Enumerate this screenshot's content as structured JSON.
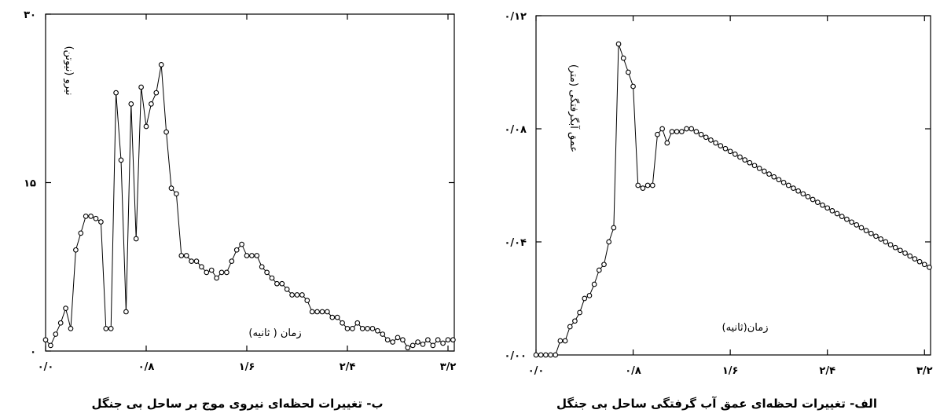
{
  "charts": [
    {
      "caption": "ب- تغییرات لحظه‌ای نیروی موج بر ساحل بی جنگل",
      "chart_data": {
        "type": "scatter",
        "style": "line-with-markers",
        "xlabel": "زمان ( ثانیه)",
        "ylabel": "نیرو (نیوتن)",
        "xlim": [
          0,
          3.25
        ],
        "ylim": [
          0,
          30
        ],
        "xticks": [
          0,
          0.8,
          1.6,
          2.4,
          3.2
        ],
        "xtick_labels": [
          "۰/۰",
          "۰/۸",
          "۱/۶",
          "۲/۴",
          "۳/۲"
        ],
        "yticks": [
          0,
          15,
          30
        ],
        "ytick_labels": [
          "۰",
          "۱۵",
          "۳۰"
        ],
        "series": [
          {
            "x": [
              0.0,
              0.04,
              0.08,
              0.12,
              0.16,
              0.2,
              0.24,
              0.28,
              0.32,
              0.36,
              0.4,
              0.44,
              0.48,
              0.52,
              0.56,
              0.6,
              0.64,
              0.68,
              0.72,
              0.76,
              0.8,
              0.84,
              0.88,
              0.92,
              0.96,
              1.0,
              1.04,
              1.08,
              1.12,
              1.16,
              1.2,
              1.24,
              1.28,
              1.32,
              1.36,
              1.4,
              1.44,
              1.48,
              1.52,
              1.56,
              1.6,
              1.64,
              1.68,
              1.72,
              1.76,
              1.8,
              1.84,
              1.88,
              1.92,
              1.96,
              2.0,
              2.04,
              2.08,
              2.12,
              2.16,
              2.2,
              2.24,
              2.28,
              2.32,
              2.36,
              2.4,
              2.44,
              2.48,
              2.52,
              2.56,
              2.6,
              2.64,
              2.68,
              2.72,
              2.76,
              2.8,
              2.84,
              2.88,
              2.92,
              2.96,
              3.0,
              3.04,
              3.08,
              3.12,
              3.16,
              3.2,
              3.24
            ],
            "y": [
              1.0,
              0.5,
              1.5,
              2.5,
              3.8,
              2.0,
              9.0,
              10.5,
              12.0,
              12.0,
              11.8,
              11.5,
              2.0,
              2.0,
              23.0,
              17.0,
              3.5,
              22.0,
              10.0,
              23.5,
              20.0,
              22.0,
              23.0,
              25.5,
              19.5,
              14.5,
              14.0,
              8.5,
              8.5,
              8.0,
              8.0,
              7.5,
              7.0,
              7.2,
              6.5,
              7.0,
              7.0,
              8.0,
              9.0,
              9.5,
              8.5,
              8.5,
              8.5,
              7.5,
              7.0,
              6.5,
              6.0,
              6.0,
              5.5,
              5.0,
              5.0,
              5.0,
              4.5,
              3.5,
              3.5,
              3.5,
              3.5,
              3.0,
              3.0,
              2.5,
              2.0,
              2.0,
              2.5,
              2.0,
              2.0,
              2.0,
              1.8,
              1.5,
              1.0,
              0.8,
              1.2,
              1.0,
              0.3,
              0.5,
              0.8,
              0.6,
              1.0,
              0.5,
              1.0,
              0.7,
              1.0,
              1.0
            ]
          }
        ]
      }
    },
    {
      "caption": "الف- تغییرات لحظه‌ای عمق آب گرفتگی ساحل بی جنگل",
      "chart_data": {
        "type": "scatter",
        "style": "line-with-markers",
        "xlabel": "زمان(ثانیه)",
        "ylabel": "عمق آبگرفتگی (متر)",
        "xlim": [
          0,
          3.25
        ],
        "ylim": [
          0,
          0.12
        ],
        "xticks": [
          0,
          0.8,
          1.6,
          2.4,
          3.2
        ],
        "xtick_labels": [
          "۰/۰",
          "۰/۸",
          "۱/۶",
          "۲/۴",
          "۳/۲"
        ],
        "yticks": [
          0,
          0.04,
          0.08,
          0.12
        ],
        "ytick_labels": [
          "۰/۰۰",
          "۰/۰۴",
          "۰/۰۸",
          "۰/۱۲"
        ],
        "series": [
          {
            "x": [
              0.0,
              0.04,
              0.08,
              0.12,
              0.16,
              0.2,
              0.24,
              0.28,
              0.32,
              0.36,
              0.4,
              0.44,
              0.48,
              0.52,
              0.56,
              0.6,
              0.64,
              0.68,
              0.72,
              0.76,
              0.8,
              0.84,
              0.88,
              0.92,
              0.96,
              1.0,
              1.04,
              1.08,
              1.12,
              1.16,
              1.2,
              1.24,
              1.28,
              1.32,
              1.36,
              1.4,
              1.44,
              1.48,
              1.52,
              1.56,
              1.6,
              1.64,
              1.68,
              1.72,
              1.76,
              1.8,
              1.84,
              1.88,
              1.92,
              1.96,
              2.0,
              2.04,
              2.08,
              2.12,
              2.16,
              2.2,
              2.24,
              2.28,
              2.32,
              2.36,
              2.4,
              2.44,
              2.48,
              2.52,
              2.56,
              2.6,
              2.64,
              2.68,
              2.72,
              2.76,
              2.8,
              2.84,
              2.88,
              2.92,
              2.96,
              3.0,
              3.04,
              3.08,
              3.12,
              3.16,
              3.2,
              3.24
            ],
            "y": [
              0.0,
              0.0,
              0.0,
              0.0,
              0.0,
              0.005,
              0.005,
              0.01,
              0.012,
              0.015,
              0.02,
              0.021,
              0.025,
              0.03,
              0.032,
              0.04,
              0.045,
              0.11,
              0.105,
              0.1,
              0.095,
              0.06,
              0.059,
              0.06,
              0.06,
              0.078,
              0.08,
              0.075,
              0.079,
              0.079,
              0.079,
              0.08,
              0.08,
              0.079,
              0.078,
              0.077,
              0.076,
              0.075,
              0.074,
              0.073,
              0.072,
              0.071,
              0.07,
              0.069,
              0.068,
              0.067,
              0.066,
              0.065,
              0.064,
              0.063,
              0.062,
              0.061,
              0.06,
              0.059,
              0.058,
              0.057,
              0.056,
              0.055,
              0.054,
              0.053,
              0.052,
              0.051,
              0.05,
              0.049,
              0.048,
              0.047,
              0.046,
              0.045,
              0.044,
              0.043,
              0.042,
              0.041,
              0.04,
              0.039,
              0.038,
              0.037,
              0.036,
              0.035,
              0.034,
              0.033,
              0.032,
              0.031
            ]
          }
        ]
      }
    }
  ]
}
